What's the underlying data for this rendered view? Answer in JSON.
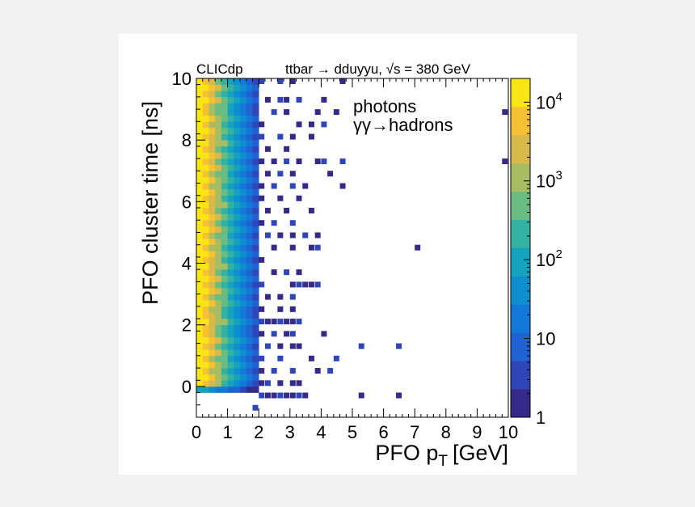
{
  "chart_data": {
    "type": "heatmap",
    "experiment_label": "CLICdp",
    "process_label": "ttbar → dduyyu, √s = 380 GeV",
    "xlabel": "PFO p",
    "xlabel_sub": "T",
    "xlabel_unit": "[GeV]",
    "ylabel": "PFO cluster time [ns]",
    "xlim": [
      0,
      10
    ],
    "ylim": [
      -1,
      10
    ],
    "x_ticks": [
      "0",
      "1",
      "2",
      "3",
      "4",
      "5",
      "6",
      "7",
      "8",
      "9",
      "10"
    ],
    "y_ticks": [
      "0",
      "2",
      "4",
      "6",
      "8",
      "10"
    ],
    "legend": [
      "photons",
      "γγ→hadrons"
    ],
    "colorbar": {
      "scale": "log",
      "range": [
        1,
        20000
      ],
      "labels": [
        {
          "text": "1",
          "exp": ""
        },
        {
          "text": "10",
          "exp": ""
        },
        {
          "text": "10",
          "exp": "2"
        },
        {
          "text": "10",
          "exp": "3"
        },
        {
          "text": "10",
          "exp": "4"
        }
      ]
    },
    "bin_width": {
      "x": 0.2,
      "y": 0.2
    },
    "dense_region": {
      "x_max_gev": 2.0,
      "y_min_ns": 0.0,
      "y_max_ns": 10.0,
      "max_count": 20000,
      "min_count": 3
    },
    "sparse_bins": [
      [
        2.1,
        9.9
      ],
      [
        2.7,
        9.9
      ],
      [
        3.1,
        9.9
      ],
      [
        4.7,
        9.9
      ],
      [
        2.3,
        9.3
      ],
      [
        2.7,
        9.3
      ],
      [
        2.9,
        9.3
      ],
      [
        3.3,
        9.3
      ],
      [
        4.1,
        9.3
      ],
      [
        2.5,
        8.9
      ],
      [
        2.9,
        8.9
      ],
      [
        3.9,
        8.9
      ],
      [
        4.5,
        8.9
      ],
      [
        9.9,
        8.9
      ],
      [
        2.1,
        8.5
      ],
      [
        3.3,
        8.5
      ],
      [
        3.7,
        8.5
      ],
      [
        4.1,
        8.5
      ],
      [
        2.1,
        8.1
      ],
      [
        2.7,
        8.1
      ],
      [
        3.1,
        8.1
      ],
      [
        3.7,
        8.1
      ],
      [
        2.3,
        7.7
      ],
      [
        2.9,
        7.7
      ],
      [
        2.1,
        7.3
      ],
      [
        2.5,
        7.3
      ],
      [
        2.9,
        7.3
      ],
      [
        3.3,
        7.3
      ],
      [
        3.9,
        7.3
      ],
      [
        4.1,
        7.3
      ],
      [
        4.7,
        7.3
      ],
      [
        9.9,
        7.3
      ],
      [
        2.3,
        6.9
      ],
      [
        2.7,
        6.9
      ],
      [
        3.1,
        6.9
      ],
      [
        4.3,
        6.9
      ],
      [
        2.1,
        6.5
      ],
      [
        2.5,
        6.5
      ],
      [
        3.1,
        6.5
      ],
      [
        3.5,
        6.5
      ],
      [
        4.7,
        6.5
      ],
      [
        2.1,
        6.1
      ],
      [
        2.7,
        6.1
      ],
      [
        3.3,
        6.1
      ],
      [
        2.3,
        5.7
      ],
      [
        2.9,
        5.7
      ],
      [
        3.7,
        5.7
      ],
      [
        2.1,
        5.3
      ],
      [
        2.5,
        5.3
      ],
      [
        3.1,
        5.3
      ],
      [
        2.3,
        4.9
      ],
      [
        2.7,
        4.9
      ],
      [
        3.1,
        4.9
      ],
      [
        3.5,
        4.9
      ],
      [
        3.9,
        4.9
      ],
      [
        2.5,
        4.5
      ],
      [
        3.1,
        4.5
      ],
      [
        3.7,
        4.5
      ],
      [
        3.9,
        4.5
      ],
      [
        7.1,
        4.5
      ],
      [
        2.1,
        4.1
      ],
      [
        2.5,
        3.7
      ],
      [
        2.9,
        3.7
      ],
      [
        3.3,
        3.7
      ],
      [
        2.1,
        3.3
      ],
      [
        3.1,
        3.3
      ],
      [
        3.3,
        3.3
      ],
      [
        3.5,
        3.3
      ],
      [
        3.7,
        3.3
      ],
      [
        3.9,
        3.3
      ],
      [
        2.3,
        2.9
      ],
      [
        2.7,
        2.9
      ],
      [
        3.1,
        2.9
      ],
      [
        2.1,
        2.5
      ],
      [
        2.7,
        2.5
      ],
      [
        3.1,
        2.5
      ],
      [
        2.1,
        2.1
      ],
      [
        2.3,
        2.1
      ],
      [
        2.5,
        2.1
      ],
      [
        2.7,
        2.1
      ],
      [
        2.9,
        2.1
      ],
      [
        3.1,
        2.1
      ],
      [
        3.3,
        2.1
      ],
      [
        2.1,
        1.7
      ],
      [
        2.5,
        1.7
      ],
      [
        2.9,
        1.7
      ],
      [
        3.1,
        1.7
      ],
      [
        4.1,
        1.7
      ],
      [
        2.3,
        1.3
      ],
      [
        2.7,
        1.3
      ],
      [
        3.1,
        1.3
      ],
      [
        3.3,
        1.3
      ],
      [
        5.3,
        1.3
      ],
      [
        6.5,
        1.3
      ],
      [
        2.1,
        0.9
      ],
      [
        2.7,
        0.9
      ],
      [
        3.7,
        0.9
      ],
      [
        4.5,
        0.9
      ],
      [
        2.1,
        0.5
      ],
      [
        2.5,
        0.5
      ],
      [
        3.1,
        0.5
      ],
      [
        3.9,
        0.5
      ],
      [
        4.3,
        0.5
      ],
      [
        2.1,
        0.1
      ],
      [
        2.3,
        0.1
      ],
      [
        2.7,
        0.1
      ],
      [
        3.1,
        0.1
      ],
      [
        3.3,
        0.1
      ],
      [
        2.1,
        -0.3
      ],
      [
        2.3,
        -0.3
      ],
      [
        2.5,
        -0.3
      ],
      [
        2.7,
        -0.3
      ],
      [
        2.9,
        -0.3
      ],
      [
        3.1,
        -0.3
      ],
      [
        3.3,
        -0.3
      ],
      [
        3.5,
        -0.3
      ],
      [
        5.3,
        -0.3
      ],
      [
        6.5,
        -0.3
      ],
      [
        1.9,
        -0.7
      ]
    ]
  }
}
